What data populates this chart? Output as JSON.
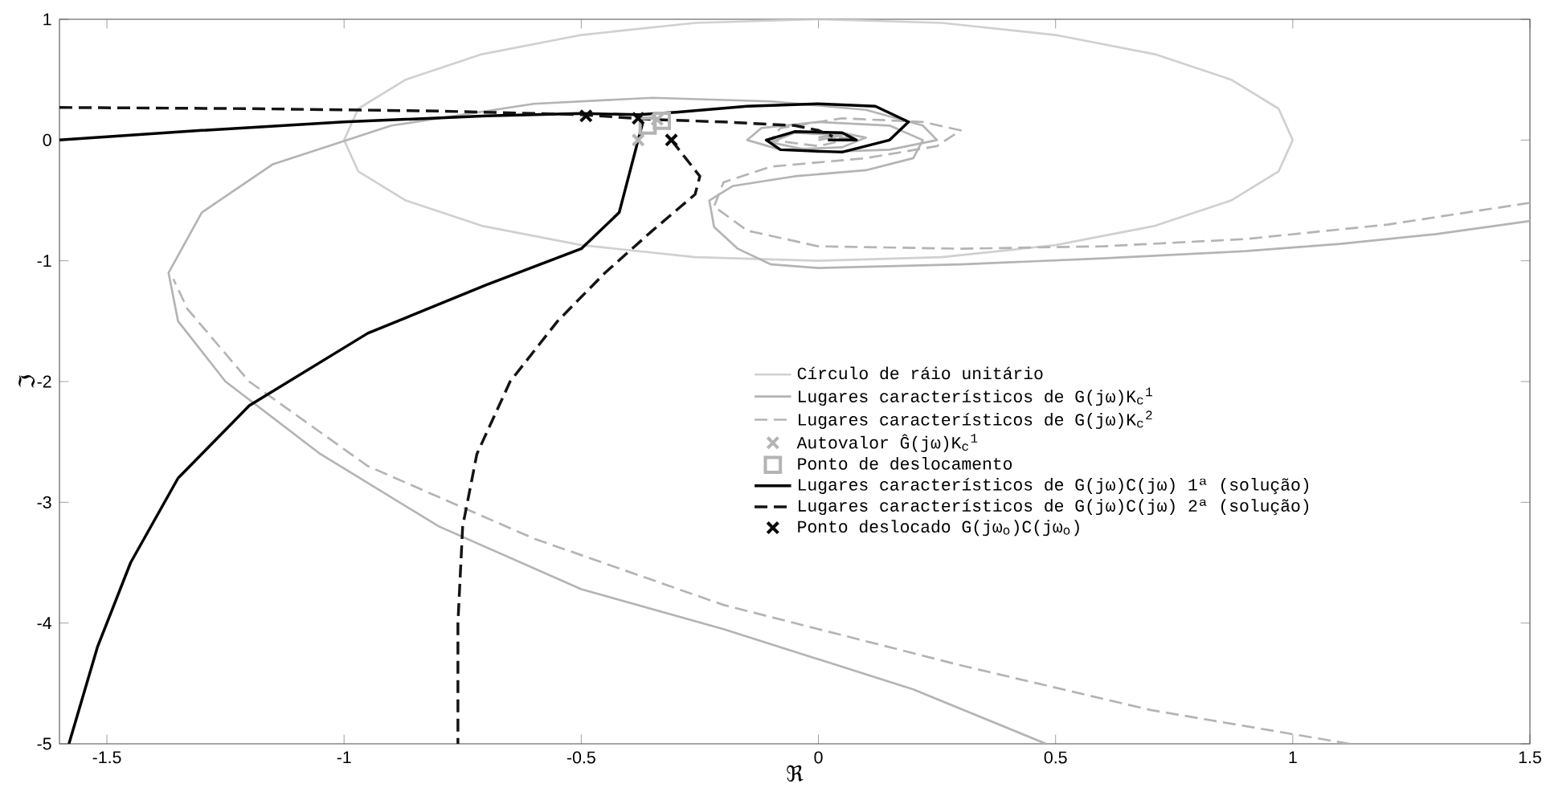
{
  "chart_data": {
    "type": "line",
    "xlabel": "ℜ",
    "ylabel": "ℑ",
    "xlim": [
      -1.6,
      1.5
    ],
    "ylim": [
      -5,
      1
    ],
    "xticks": [
      -1.5,
      -1,
      -0.5,
      0,
      0.5,
      1,
      1.5
    ],
    "yticks": [
      -5,
      -4,
      -3,
      -2,
      -1,
      0,
      1
    ],
    "grid": false,
    "legend": "right",
    "series": [
      {
        "name": "Círculo de ráio unitário",
        "color": "#d0d0d0",
        "line_style": "solid",
        "marker": "none",
        "x": [
          1,
          0.97,
          0.87,
          0.71,
          0.5,
          0.26,
          0,
          -0.26,
          -0.5,
          -0.71,
          -0.87,
          -0.97,
          -1,
          null,
          -1,
          -0.97,
          -0.87,
          -0.71,
          -0.5,
          -0.26,
          0,
          0.26,
          0.5,
          0.71,
          0.87,
          0.97,
          1
        ],
        "values": [
          0,
          0.26,
          0.5,
          0.71,
          0.87,
          0.97,
          1,
          0.97,
          0.87,
          0.71,
          0.5,
          0.26,
          0,
          null,
          0,
          -0.26,
          -0.5,
          -0.71,
          -0.87,
          -0.97,
          -1,
          -0.97,
          -0.87,
          -0.71,
          -0.5,
          -0.26,
          0
        ]
      },
      {
        "name": "Lugares característicos de G(jω)K$_{c}$$^{1}$",
        "color": "#b4b4b4",
        "line_style": "solid",
        "marker": "none",
        "x": [
          1.5,
          1.3,
          1.1,
          0.9,
          0.6,
          0.3,
          0.0,
          -0.1,
          -0.17,
          -0.22,
          -0.23,
          -0.18,
          -0.05,
          0.1,
          0.2,
          0.22,
          0.15,
          0.0,
          -0.12,
          -0.15,
          -0.08,
          0.05,
          0.1,
          0.05,
          0.0,
          null,
          0.48,
          0.2,
          -0.2,
          -0.5,
          -0.8,
          -1.05,
          -1.25,
          -1.35,
          -1.37,
          -1.3,
          -1.15,
          -0.9,
          -0.6,
          -0.35,
          -0.1,
          0.1,
          0.22,
          0.25,
          0.15,
          0.0,
          -0.1,
          -0.05,
          0.05,
          0.0
        ],
        "values": [
          -0.67,
          -0.78,
          -0.86,
          -0.92,
          -0.98,
          -1.03,
          -1.06,
          -1.03,
          -0.9,
          -0.72,
          -0.5,
          -0.38,
          -0.3,
          -0.25,
          -0.15,
          0.0,
          0.12,
          0.15,
          0.1,
          0.0,
          -0.08,
          -0.06,
          0.02,
          0.06,
          0.02,
          null,
          -5.0,
          -4.55,
          -4.05,
          -3.72,
          -3.2,
          -2.6,
          -2.0,
          -1.5,
          -1.1,
          -0.6,
          -0.2,
          0.12,
          0.3,
          0.35,
          0.32,
          0.25,
          0.12,
          0.0,
          -0.08,
          -0.1,
          -0.02,
          0.06,
          0.04,
          0.0
        ]
      },
      {
        "name": "Lugares característicos de G(jω)K$_{c}$$^{2}$",
        "color": "#b4b4b4",
        "line_style": "dashed",
        "marker": "none",
        "x": [
          1.5,
          1.2,
          0.9,
          0.6,
          0.3,
          0.0,
          -0.15,
          -0.22,
          -0.2,
          -0.1,
          0.1,
          0.25,
          0.3,
          0.22,
          0.05,
          -0.08,
          -0.1,
          0.0,
          0.08,
          0.02,
          null,
          1.12,
          0.7,
          0.3,
          -0.2,
          -0.6,
          -0.95,
          -1.2,
          -1.33,
          -1.36
        ],
        "values": [
          -0.52,
          -0.7,
          -0.82,
          -0.88,
          -0.9,
          -0.88,
          -0.75,
          -0.55,
          -0.35,
          -0.22,
          -0.15,
          -0.05,
          0.08,
          0.15,
          0.18,
          0.1,
          0.0,
          -0.05,
          0.02,
          0.02,
          null,
          -5.0,
          -4.72,
          -4.35,
          -3.85,
          -3.3,
          -2.7,
          -2.0,
          -1.4,
          -1.15
        ]
      },
      {
        "name": "Autovalor Ĝ(jω)K$_{c}$$^{1}$",
        "type": "scatter",
        "color": "#b4b4b4",
        "marker": "cross",
        "x": [
          -0.38,
          -0.34
        ],
        "values": [
          0.0,
          0.17
        ]
      },
      {
        "name": "Ponto de deslocamento",
        "type": "scatter",
        "color": "#b4b4b4",
        "marker": "square",
        "x": [
          -0.36,
          -0.33
        ],
        "values": [
          0.12,
          0.16
        ]
      },
      {
        "name": "Lugares característicos de G(jω)C(jω) 1ª (solução)",
        "color": "#000000",
        "line_style": "solid",
        "marker": "none",
        "x": [
          -1.6,
          -1.3,
          -1.0,
          -0.7,
          -0.5,
          -0.38,
          -0.3,
          -0.15,
          0.0,
          0.12,
          0.19,
          0.15,
          0.05,
          -0.08,
          -0.11,
          -0.05,
          0.05,
          0.08,
          0.02,
          null,
          -0.37,
          -0.38,
          -0.4,
          -0.42,
          -0.5,
          -0.7,
          -0.95,
          -1.2,
          -1.35,
          -1.45,
          -1.52,
          -1.58
        ],
        "values": [
          0.0,
          0.08,
          0.15,
          0.2,
          0.22,
          0.21,
          0.23,
          0.28,
          0.3,
          0.28,
          0.15,
          0.0,
          -0.1,
          -0.08,
          0.0,
          0.07,
          0.06,
          0.0,
          0.0,
          null,
          0.15,
          0.0,
          -0.3,
          -0.6,
          -0.9,
          -1.2,
          -1.6,
          -2.2,
          -2.8,
          -3.5,
          -4.2,
          -5.0
        ]
      },
      {
        "name": "Lugares característicos de G(jω)C(jω) 2ª (solução)",
        "color": "#141414",
        "line_style": "dashed",
        "marker": "none",
        "x": [
          -1.6,
          -1.2,
          -0.8,
          -0.5,
          -0.35,
          -0.2,
          -0.05,
          0.0,
          0.03,
          null,
          -0.31,
          -0.28,
          -0.25,
          -0.26,
          -0.35,
          -0.45,
          -0.55,
          -0.65,
          -0.72,
          -0.75,
          -0.76,
          -0.76
        ],
        "values": [
          0.27,
          0.26,
          0.24,
          0.21,
          0.17,
          0.15,
          0.12,
          0.08,
          0.03,
          null,
          0.0,
          -0.15,
          -0.3,
          -0.45,
          -0.75,
          -1.1,
          -1.5,
          -2.0,
          -2.6,
          -3.2,
          -4.0,
          -5.0
        ]
      },
      {
        "name": "Ponto deslocado G(jω$_{o}$)C(jω$_{o}$)",
        "type": "scatter",
        "color": "#0a0a0a",
        "marker": "cross",
        "x": [
          -0.49,
          -0.38,
          -0.31
        ],
        "values": [
          0.2,
          0.18,
          0.0
        ]
      }
    ]
  }
}
